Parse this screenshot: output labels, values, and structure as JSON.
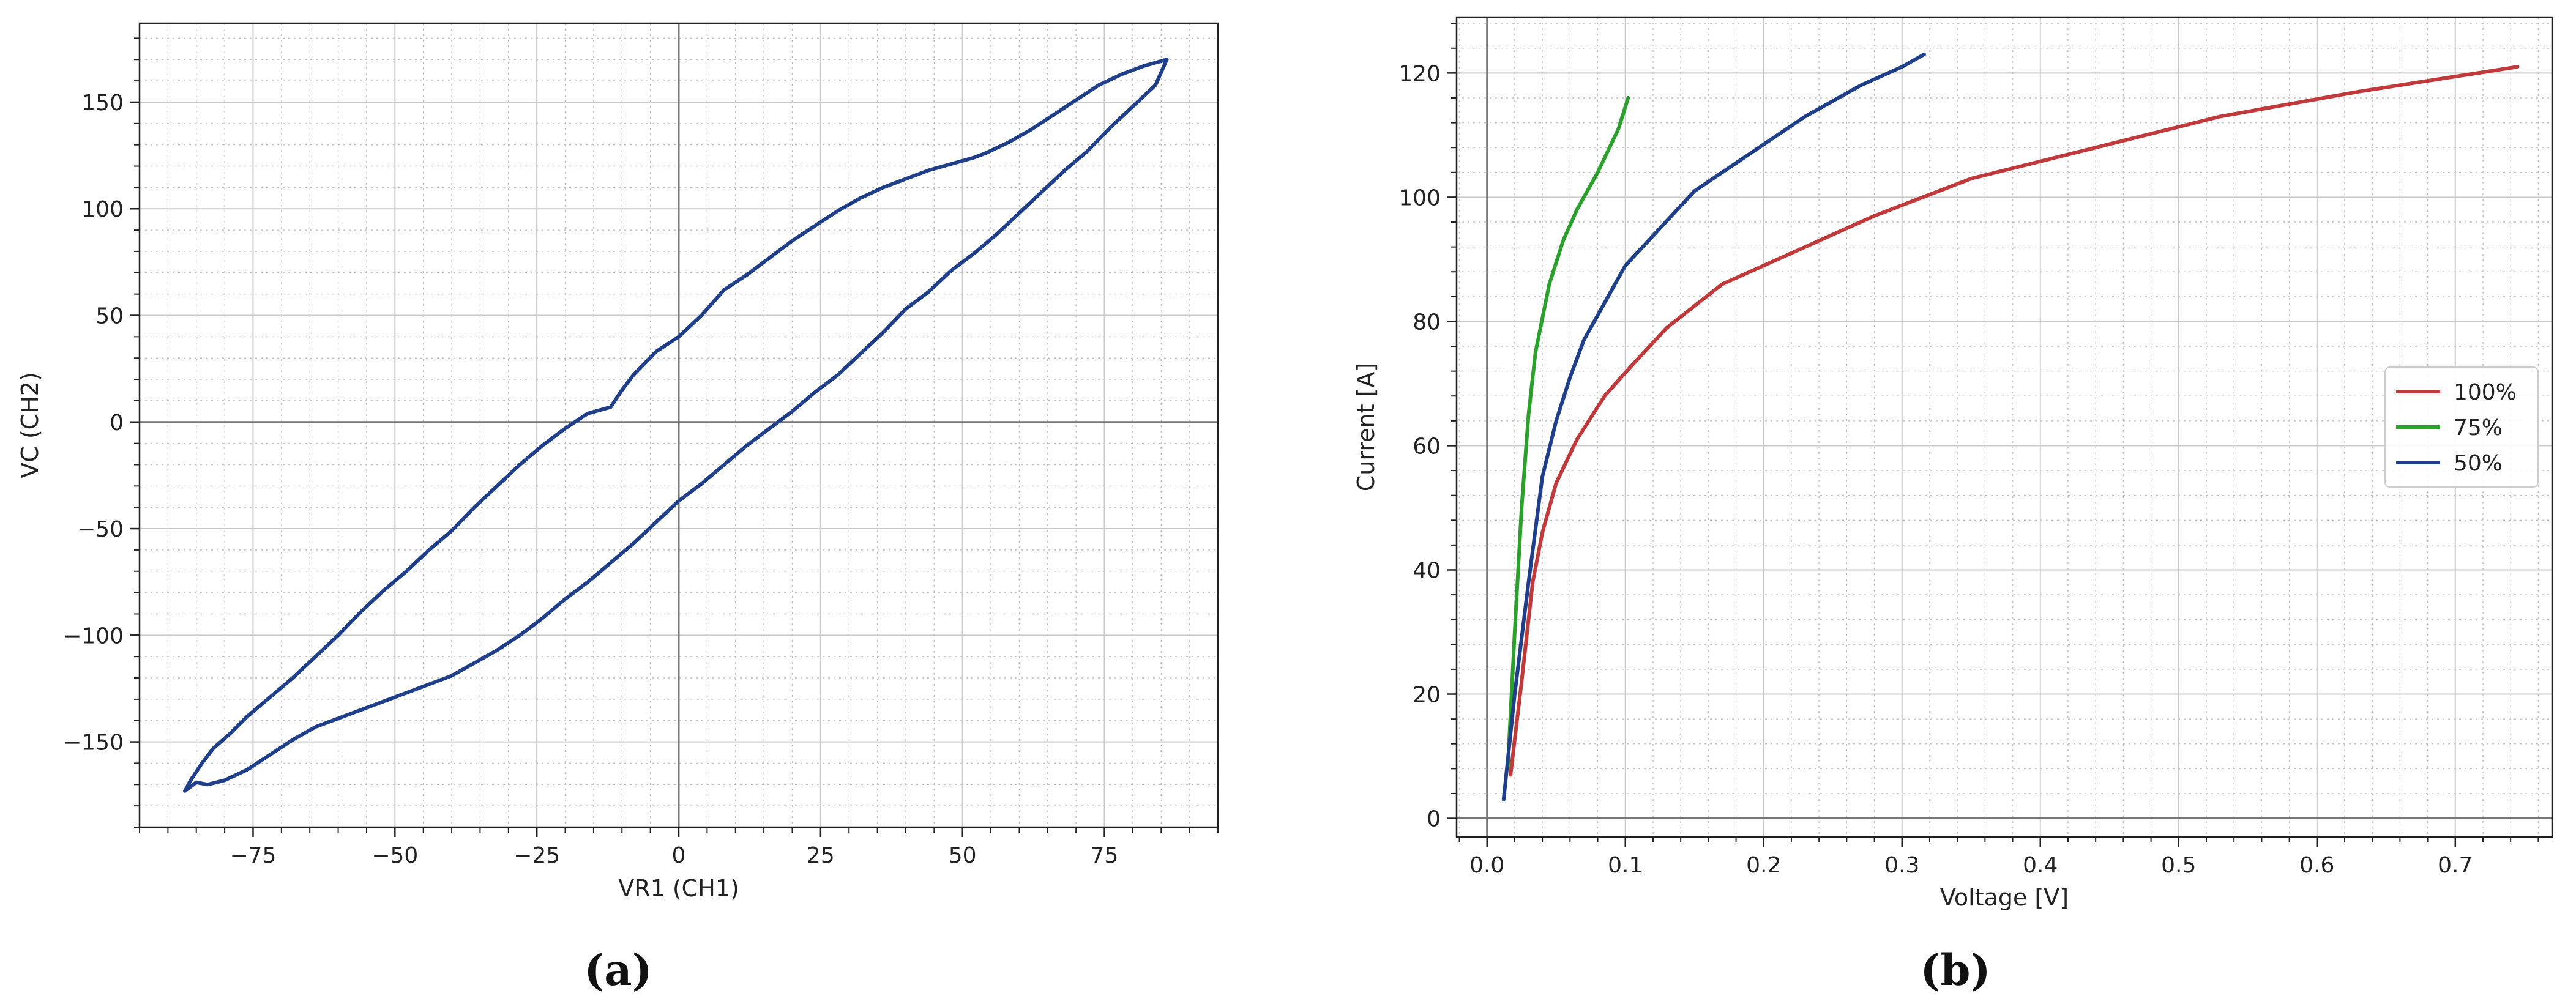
{
  "panels": [
    {
      "label": "(a)"
    },
    {
      "label": "(b)"
    }
  ],
  "chart_data": [
    {
      "type": "line",
      "xlabel": "VR1 (CH1)",
      "ylabel": "VC (CH2)",
      "xlim": [
        -95,
        95
      ],
      "ylim": [
        -190,
        187
      ],
      "xticks": [
        -75,
        -50,
        -25,
        0,
        25,
        50,
        75
      ],
      "yticks": [
        -150,
        -100,
        -50,
        0,
        50,
        100,
        150
      ],
      "xtick_labels": [
        "−75",
        "−50",
        "−25",
        "0",
        "25",
        "50",
        "75"
      ],
      "ytick_labels": [
        "−150",
        "−100",
        "−50",
        "0",
        "50",
        "100",
        "150"
      ],
      "grid": true,
      "minor_grid": true,
      "zero_lines": true,
      "series": [
        {
          "color": "#1f3f8a",
          "x": [
            -87,
            -86,
            -84,
            -82,
            -79,
            -76,
            -72,
            -68,
            -64,
            -60,
            -56,
            -52,
            -48,
            -44,
            -40,
            -36,
            -32,
            -28,
            -24,
            -20,
            -16,
            -12,
            -10,
            -8,
            -4,
            0,
            4,
            8,
            12,
            16,
            20,
            24,
            28,
            32,
            36,
            40,
            44,
            48,
            52,
            54,
            58,
            62,
            66,
            70,
            74,
            78,
            82,
            86
          ],
          "y": [
            -173,
            -168,
            -160,
            -153,
            -146,
            -138,
            -129,
            -120,
            -110,
            -100,
            -89,
            -79,
            -70,
            -60,
            -51,
            -40,
            -30,
            -20,
            -11,
            -3,
            4,
            7,
            15,
            22,
            33,
            40,
            50,
            62,
            69,
            77,
            85,
            92,
            99,
            105,
            110,
            114,
            118,
            121,
            124,
            126,
            131,
            137,
            144,
            151,
            158,
            163,
            167,
            170
          ]
        },
        {
          "color": "#1f3f8a",
          "x": [
            86,
            84,
            80,
            76,
            72,
            68,
            64,
            60,
            56,
            52,
            48,
            44,
            40,
            36,
            32,
            28,
            24,
            20,
            16,
            12,
            8,
            4,
            0,
            -4,
            -8,
            -12,
            -16,
            -20,
            -24,
            -28,
            -32,
            -36,
            -40,
            -44,
            -48,
            -52,
            -56,
            -60,
            -64,
            -68,
            -72,
            -76,
            -80,
            -83,
            -85,
            -87
          ],
          "y": [
            170,
            158,
            148,
            138,
            127,
            118,
            108,
            98,
            88,
            79,
            71,
            61,
            53,
            42,
            32,
            22,
            14,
            5,
            -3,
            -11,
            -20,
            -29,
            -37,
            -47,
            -57,
            -66,
            -75,
            -83,
            -92,
            -100,
            -107,
            -113,
            -119,
            -123,
            -127,
            -131,
            -135,
            -139,
            -143,
            -149,
            -156,
            -163,
            -168,
            -170,
            -169,
            -173
          ]
        }
      ]
    },
    {
      "type": "line",
      "xlabel": "Voltage [V]",
      "ylabel": "Current [A]",
      "xlim": [
        -0.022,
        0.77
      ],
      "ylim": [
        -3,
        129
      ],
      "xticks": [
        0.0,
        0.1,
        0.2,
        0.3,
        0.4,
        0.5,
        0.6,
        0.7
      ],
      "yticks": [
        0,
        20,
        40,
        60,
        80,
        100,
        120
      ],
      "xtick_labels": [
        "0.0",
        "0.1",
        "0.2",
        "0.3",
        "0.4",
        "0.5",
        "0.6",
        "0.7"
      ],
      "ytick_labels": [
        "0",
        "20",
        "40",
        "60",
        "80",
        "100",
        "120"
      ],
      "grid": true,
      "minor_grid": true,
      "zero_lines": true,
      "legend": "center-right",
      "series": [
        {
          "name": "100%",
          "color": "#c0393b",
          "x": [
            0.017,
            0.025,
            0.033,
            0.04,
            0.05,
            0.065,
            0.085,
            0.105,
            0.13,
            0.17,
            0.22,
            0.28,
            0.35,
            0.44,
            0.53,
            0.63,
            0.745
          ],
          "y": [
            7,
            22,
            38,
            46,
            54,
            61,
            68,
            73,
            79,
            86,
            91,
            97,
            103,
            108,
            113,
            117,
            121
          ]
        },
        {
          "name": "75%",
          "color": "#2ca02c",
          "x": [
            0.015,
            0.02,
            0.025,
            0.03,
            0.035,
            0.045,
            0.055,
            0.065,
            0.08,
            0.095,
            0.102
          ],
          "y": [
            8,
            30,
            50,
            65,
            75,
            86,
            93,
            98,
            104,
            111,
            116
          ]
        },
        {
          "name": "50%",
          "color": "#1f3f8a",
          "x": [
            0.012,
            0.02,
            0.03,
            0.04,
            0.05,
            0.06,
            0.07,
            0.085,
            0.1,
            0.125,
            0.15,
            0.19,
            0.23,
            0.27,
            0.3,
            0.316
          ],
          "y": [
            3,
            20,
            38,
            55,
            64,
            71,
            77,
            83,
            89,
            95,
            101,
            107,
            113,
            118,
            121,
            123
          ]
        }
      ]
    }
  ]
}
